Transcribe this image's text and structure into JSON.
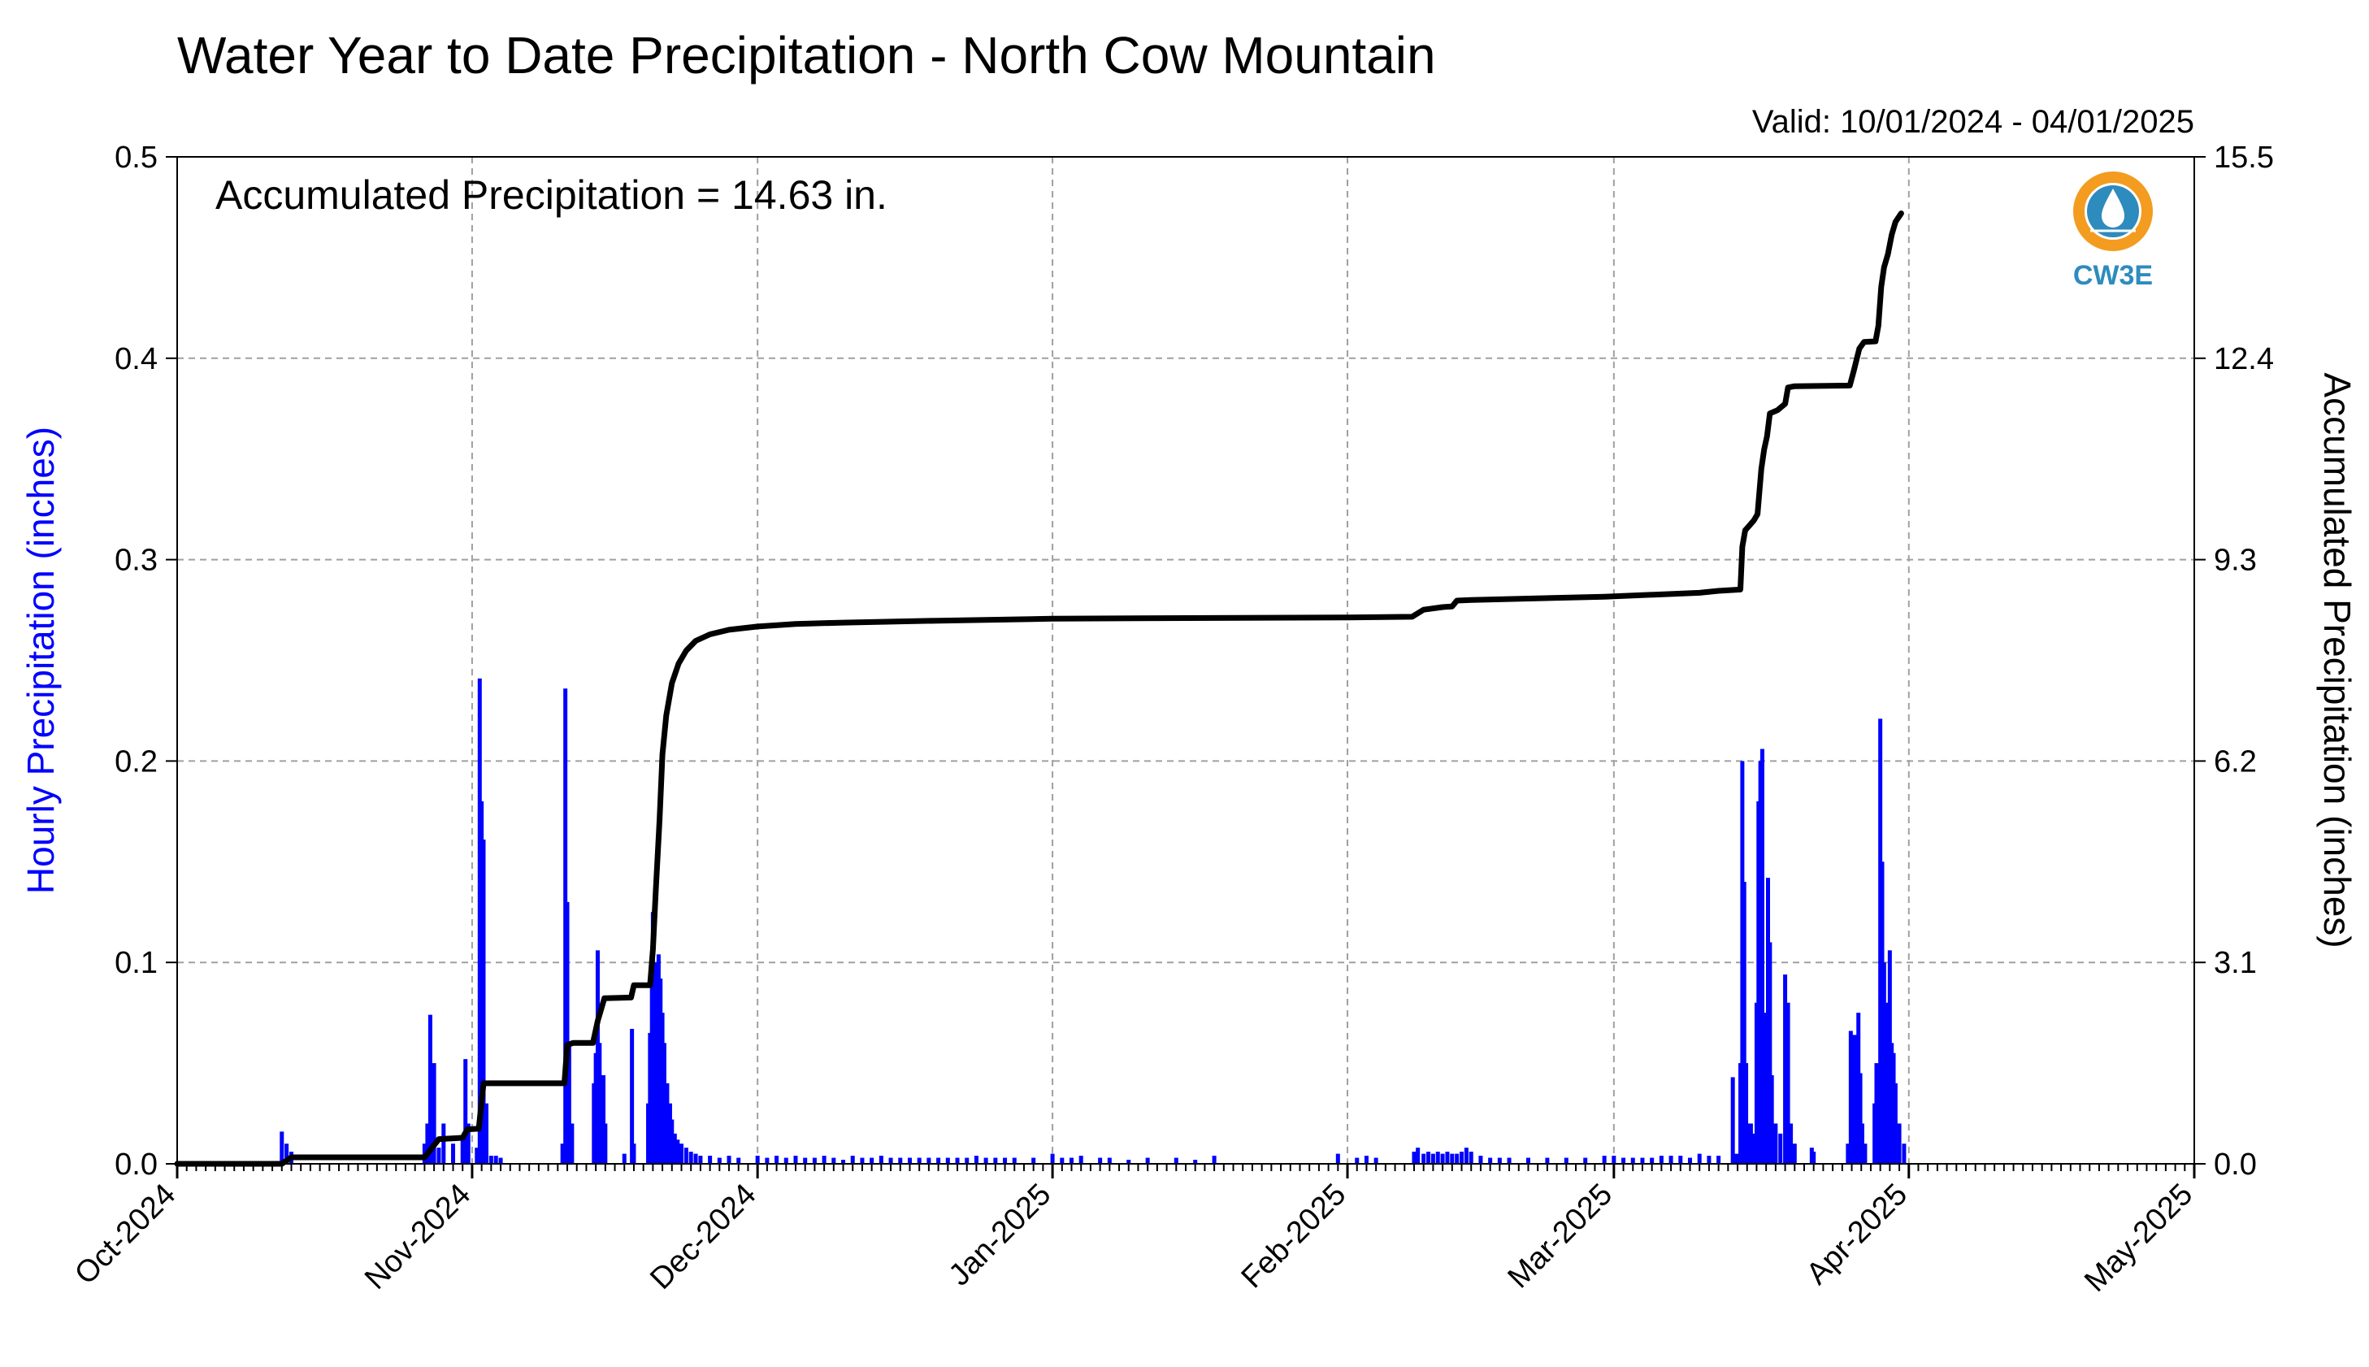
{
  "chart_data": {
    "type": "bar",
    "title": "Water Year to Date Precipitation - North Cow Mountain",
    "subtitle": "Valid: 10/01/2024 - 04/01/2025",
    "annotation": "Accumulated Precipitation = 14.63 in.",
    "logo_text": "CW3E",
    "ylabel_left": "Hourly Precipitation (inches)",
    "ylabel_right": "Accumulated Precipitation (inches)",
    "xlim": [
      "2024-10-01",
      "2025-05-01"
    ],
    "ylim_left": [
      0,
      0.5
    ],
    "ylim_right": [
      0,
      15.5
    ],
    "x_ticks": [
      "Oct-2024",
      "Nov-2024",
      "Dec-2024",
      "Jan-2025",
      "Feb-2025",
      "Mar-2025",
      "Apr-2025",
      "May-2025"
    ],
    "yticks_left": [
      "0.0",
      "0.1",
      "0.2",
      "0.3",
      "0.4",
      "0.5"
    ],
    "yticks_right": [
      "0.0",
      "3.1",
      "6.2",
      "9.3",
      "12.4",
      "15.5"
    ],
    "grid": true,
    "colors": {
      "hourly": "#0000ff",
      "accumulated": "#000000",
      "grid": "#a0a0a0",
      "label_left": "#0000ff",
      "logo": "#2e8bbd",
      "logo_ring": "#f39c1f"
    },
    "series": [
      {
        "name": "Hourly Precipitation (inches)",
        "axis": "left",
        "style": "bar",
        "points": [
          [
            "2024-10-12",
            0.016
          ],
          [
            "2024-10-12.5",
            0.01
          ],
          [
            "2024-10-13",
            0.006
          ],
          [
            "2024-10-27",
            0.01
          ],
          [
            "2024-10-27.3",
            0.02
          ],
          [
            "2024-10-27.6",
            0.074
          ],
          [
            "2024-10-28",
            0.05
          ],
          [
            "2024-10-28.5",
            0.008
          ],
          [
            "2024-10-29",
            0.02
          ],
          [
            "2024-10-30",
            0.01
          ],
          [
            "2024-10-31",
            0.012
          ],
          [
            "2024-10-31.3",
            0.052
          ],
          [
            "2024-10-31.6",
            0.02
          ],
          [
            "2024-11-01.5",
            0.008
          ],
          [
            "2024-11-01.8",
            0.241
          ],
          [
            "2024-11-02",
            0.18
          ],
          [
            "2024-11-02.2",
            0.161
          ],
          [
            "2024-11-02.5",
            0.03
          ],
          [
            "2024-11-03",
            0.004
          ],
          [
            "2024-11-03.5",
            0.004
          ],
          [
            "2024-11-04",
            0.003
          ],
          [
            "2024-11-10.5",
            0.01
          ],
          [
            "2024-11-10.8",
            0.236
          ],
          [
            "2024-11-11",
            0.13
          ],
          [
            "2024-11-11.2",
            0.06
          ],
          [
            "2024-11-11.5",
            0.02
          ],
          [
            "2024-11-13.8",
            0.04
          ],
          [
            "2024-11-14",
            0.055
          ],
          [
            "2024-11-14.2",
            0.106
          ],
          [
            "2024-11-14.4",
            0.06
          ],
          [
            "2024-11-14.6",
            0.044
          ],
          [
            "2024-11-14.8",
            0.044
          ],
          [
            "2024-11-15",
            0.02
          ],
          [
            "2024-11-17",
            0.005
          ],
          [
            "2024-11-17.8",
            0.067
          ],
          [
            "2024-11-18",
            0.01
          ],
          [
            "2024-11-19.5",
            0.03
          ],
          [
            "2024-11-19.7",
            0.065
          ],
          [
            "2024-11-19.9",
            0.09
          ],
          [
            "2024-11-20",
            0.125
          ],
          [
            "2024-11-20.2",
            0.096
          ],
          [
            "2024-11-20.4",
            0.1
          ],
          [
            "2024-11-20.6",
            0.104
          ],
          [
            "2024-11-20.8",
            0.092
          ],
          [
            "2024-11-21",
            0.075
          ],
          [
            "2024-11-21.2",
            0.06
          ],
          [
            "2024-11-21.5",
            0.04
          ],
          [
            "2024-11-21.8",
            0.03
          ],
          [
            "2024-11-22",
            0.022
          ],
          [
            "2024-11-22.3",
            0.015
          ],
          [
            "2024-11-22.6",
            0.012
          ],
          [
            "2024-11-23",
            0.01
          ],
          [
            "2024-11-23.5",
            0.008
          ],
          [
            "2024-11-24",
            0.006
          ],
          [
            "2024-11-24.5",
            0.005
          ],
          [
            "2024-11-25",
            0.004
          ],
          [
            "2024-11-26",
            0.004
          ],
          [
            "2024-11-27",
            0.003
          ],
          [
            "2024-11-28",
            0.004
          ],
          [
            "2024-11-29",
            0.003
          ],
          [
            "2024-12-01",
            0.004
          ],
          [
            "2024-12-02",
            0.003
          ],
          [
            "2024-12-03",
            0.004
          ],
          [
            "2024-12-04",
            0.003
          ],
          [
            "2024-12-05",
            0.004
          ],
          [
            "2024-12-06",
            0.003
          ],
          [
            "2024-12-07",
            0.003
          ],
          [
            "2024-12-08",
            0.004
          ],
          [
            "2024-12-09",
            0.003
          ],
          [
            "2024-12-10",
            0.002
          ],
          [
            "2024-12-11",
            0.004
          ],
          [
            "2024-12-12",
            0.003
          ],
          [
            "2024-12-13",
            0.003
          ],
          [
            "2024-12-14",
            0.004
          ],
          [
            "2024-12-15",
            0.003
          ],
          [
            "2024-12-16",
            0.003
          ],
          [
            "2024-12-17",
            0.003
          ],
          [
            "2024-12-18",
            0.003
          ],
          [
            "2024-12-19",
            0.003
          ],
          [
            "2024-12-20",
            0.003
          ],
          [
            "2024-12-21",
            0.003
          ],
          [
            "2024-12-22",
            0.003
          ],
          [
            "2024-12-23",
            0.003
          ],
          [
            "2024-12-24",
            0.004
          ],
          [
            "2024-12-25",
            0.003
          ],
          [
            "2024-12-26",
            0.003
          ],
          [
            "2024-12-27",
            0.003
          ],
          [
            "2024-12-28",
            0.003
          ],
          [
            "2024-12-30",
            0.003
          ],
          [
            "2025-01-01",
            0.005
          ],
          [
            "2025-01-02",
            0.003
          ],
          [
            "2025-01-03",
            0.003
          ],
          [
            "2025-01-04",
            0.004
          ],
          [
            "2025-01-06",
            0.003
          ],
          [
            "2025-01-07",
            0.003
          ],
          [
            "2025-01-09",
            0.002
          ],
          [
            "2025-01-11",
            0.003
          ],
          [
            "2025-01-14",
            0.003
          ],
          [
            "2025-01-16",
            0.002
          ],
          [
            "2025-01-18",
            0.004
          ],
          [
            "2025-01-31",
            0.005
          ],
          [
            "2025-02-02",
            0.003
          ],
          [
            "2025-02-03",
            0.004
          ],
          [
            "2025-02-04",
            0.003
          ],
          [
            "2025-02-08",
            0.006
          ],
          [
            "2025-02-08.4",
            0.008
          ],
          [
            "2025-02-09",
            0.005
          ],
          [
            "2025-02-09.5",
            0.006
          ],
          [
            "2025-02-10",
            0.005
          ],
          [
            "2025-02-10.5",
            0.006
          ],
          [
            "2025-02-11",
            0.005
          ],
          [
            "2025-02-11.5",
            0.006
          ],
          [
            "2025-02-12",
            0.005
          ],
          [
            "2025-02-12.5",
            0.005
          ],
          [
            "2025-02-13",
            0.006
          ],
          [
            "2025-02-13.5",
            0.008
          ],
          [
            "2025-02-14",
            0.006
          ],
          [
            "2025-02-15",
            0.004
          ],
          [
            "2025-02-16",
            0.003
          ],
          [
            "2025-02-17",
            0.003
          ],
          [
            "2025-02-18",
            0.003
          ],
          [
            "2025-02-20",
            0.003
          ],
          [
            "2025-02-22",
            0.003
          ],
          [
            "2025-02-24",
            0.003
          ],
          [
            "2025-02-26",
            0.003
          ],
          [
            "2025-02-28",
            0.004
          ],
          [
            "2025-03-01",
            0.004
          ],
          [
            "2025-03-02",
            0.003
          ],
          [
            "2025-03-03",
            0.003
          ],
          [
            "2025-03-04",
            0.003
          ],
          [
            "2025-03-05",
            0.003
          ],
          [
            "2025-03-06",
            0.004
          ],
          [
            "2025-03-07",
            0.004
          ],
          [
            "2025-03-08",
            0.004
          ],
          [
            "2025-03-09",
            0.003
          ],
          [
            "2025-03-10",
            0.005
          ],
          [
            "2025-03-11",
            0.004
          ],
          [
            "2025-03-12",
            0.004
          ],
          [
            "2025-03-13.5",
            0.043
          ],
          [
            "2025-03-13.9",
            0.005
          ],
          [
            "2025-03-14.3",
            0.05
          ],
          [
            "2025-03-14.5",
            0.2
          ],
          [
            "2025-03-14.7",
            0.14
          ],
          [
            "2025-03-14.9",
            0.05
          ],
          [
            "2025-03-15.1",
            0.02
          ],
          [
            "2025-03-15.4",
            0.02
          ],
          [
            "2025-03-15.7",
            0.015
          ],
          [
            "2025-03-16",
            0.08
          ],
          [
            "2025-03-16.2",
            0.18
          ],
          [
            "2025-03-16.4",
            0.2
          ],
          [
            "2025-03-16.6",
            0.206
          ],
          [
            "2025-03-16.8",
            0.07
          ],
          [
            "2025-03-17",
            0.075
          ],
          [
            "2025-03-17.2",
            0.142
          ],
          [
            "2025-03-17.4",
            0.11
          ],
          [
            "2025-03-17.6",
            0.044
          ],
          [
            "2025-03-18",
            0.02
          ],
          [
            "2025-03-18.5",
            0.015
          ],
          [
            "2025-03-19",
            0.094
          ],
          [
            "2025-03-19.3",
            0.08
          ],
          [
            "2025-03-19.6",
            0.02
          ],
          [
            "2025-03-20",
            0.01
          ],
          [
            "2025-03-21.8",
            0.008
          ],
          [
            "2025-03-22",
            0.006
          ],
          [
            "2025-03-25.6",
            0.01
          ],
          [
            "2025-03-25.9",
            0.066
          ],
          [
            "2025-03-26.1",
            0.064
          ],
          [
            "2025-03-26.3",
            0.056
          ],
          [
            "2025-03-26.5",
            0.064
          ],
          [
            "2025-03-26.7",
            0.075
          ],
          [
            "2025-03-26.9",
            0.045
          ],
          [
            "2025-03-27.1",
            0.02
          ],
          [
            "2025-03-27.4",
            0.01
          ],
          [
            "2025-03-28.4",
            0.03
          ],
          [
            "2025-03-28.6",
            0.05
          ],
          [
            "2025-03-28.8",
            0.04
          ],
          [
            "2025-03-29",
            0.221
          ],
          [
            "2025-03-29.2",
            0.15
          ],
          [
            "2025-03-29.4",
            0.1
          ],
          [
            "2025-03-29.6",
            0.07
          ],
          [
            "2025-03-29.8",
            0.08
          ],
          [
            "2025-03-30",
            0.106
          ],
          [
            "2025-03-30.2",
            0.06
          ],
          [
            "2025-03-30.4",
            0.055
          ],
          [
            "2025-03-30.6",
            0.04
          ],
          [
            "2025-03-31",
            0.02
          ],
          [
            "2025-03-31.5",
            0.01
          ]
        ]
      },
      {
        "name": "Accumulated Precipitation (inches)",
        "axis": "right",
        "style": "line",
        "points": [
          [
            "2024-10-01",
            0.0
          ],
          [
            "2024-10-12",
            0.0
          ],
          [
            "2024-10-13",
            0.1
          ],
          [
            "2024-10-27",
            0.1
          ],
          [
            "2024-10-27.8",
            0.25
          ],
          [
            "2024-10-28.5",
            0.38
          ],
          [
            "2024-10-31",
            0.4
          ],
          [
            "2024-10-31.5",
            0.53
          ],
          [
            "2024-11-01.7",
            0.54
          ],
          [
            "2024-11-02.2",
            1.24
          ],
          [
            "2024-11-10.7",
            1.24
          ],
          [
            "2024-11-11",
            1.83
          ],
          [
            "2024-11-11.6",
            1.86
          ],
          [
            "2024-11-13.7",
            1.86
          ],
          [
            "2024-11-14.2",
            2.2
          ],
          [
            "2024-11-14.9",
            2.55
          ],
          [
            "2024-11-17.7",
            2.56
          ],
          [
            "2024-11-18",
            2.75
          ],
          [
            "2024-11-19.7",
            2.75
          ],
          [
            "2024-11-20",
            3.3
          ],
          [
            "2024-11-20.3",
            4.2
          ],
          [
            "2024-11-20.7",
            5.3
          ],
          [
            "2024-11-21",
            6.3
          ],
          [
            "2024-11-21.4",
            6.9
          ],
          [
            "2024-11-22",
            7.4
          ],
          [
            "2024-11-22.7",
            7.7
          ],
          [
            "2024-11-23.5",
            7.9
          ],
          [
            "2024-11-24.5",
            8.05
          ],
          [
            "2024-11-26",
            8.15
          ],
          [
            "2024-11-28",
            8.22
          ],
          [
            "2024-12-01",
            8.27
          ],
          [
            "2024-12-05",
            8.31
          ],
          [
            "2024-12-10",
            8.33
          ],
          [
            "2024-12-20",
            8.36
          ],
          [
            "2025-01-01",
            8.39
          ],
          [
            "2025-01-15",
            8.4
          ],
          [
            "2025-02-01",
            8.41
          ],
          [
            "2025-02-07.8",
            8.42
          ],
          [
            "2025-02-09",
            8.53
          ],
          [
            "2025-02-11",
            8.57
          ],
          [
            "2025-02-12",
            8.58
          ],
          [
            "2025-02-12.5",
            8.67
          ],
          [
            "2025-02-14",
            8.68
          ],
          [
            "2025-02-28",
            8.73
          ],
          [
            "2025-03-10",
            8.79
          ],
          [
            "2025-03-12",
            8.82
          ],
          [
            "2025-03-14.3",
            8.84
          ],
          [
            "2025-03-14.5",
            9.5
          ],
          [
            "2025-03-14.8",
            9.75
          ],
          [
            "2025-03-15.7",
            9.9
          ],
          [
            "2025-03-16.1",
            10.0
          ],
          [
            "2025-03-16.5",
            10.7
          ],
          [
            "2025-03-16.8",
            11.0
          ],
          [
            "2025-03-17.1",
            11.2
          ],
          [
            "2025-03-17.4",
            11.55
          ],
          [
            "2025-03-18.2",
            11.6
          ],
          [
            "2025-03-19",
            11.7
          ],
          [
            "2025-03-19.3",
            11.95
          ],
          [
            "2025-03-20",
            11.97
          ],
          [
            "2025-03-25.8",
            11.98
          ],
          [
            "2025-03-26.2",
            12.2
          ],
          [
            "2025-03-26.8",
            12.55
          ],
          [
            "2025-03-27.3",
            12.65
          ],
          [
            "2025-03-28.5",
            12.66
          ],
          [
            "2025-03-28.8",
            12.9
          ],
          [
            "2025-03-29.1",
            13.5
          ],
          [
            "2025-03-29.4",
            13.8
          ],
          [
            "2025-03-29.8",
            14.0
          ],
          [
            "2025-03-30.2",
            14.3
          ],
          [
            "2025-03-30.6",
            14.5
          ],
          [
            "2025-03-31.2",
            14.63
          ]
        ]
      }
    ]
  }
}
